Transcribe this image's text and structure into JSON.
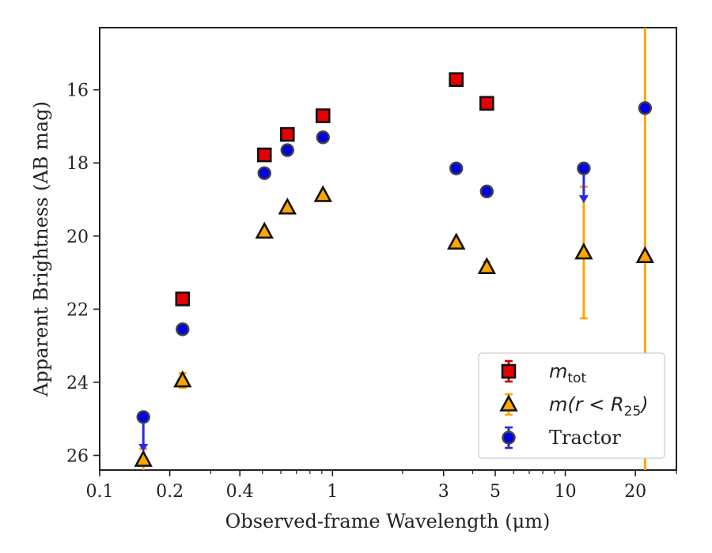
{
  "chart_data": {
    "type": "scatter",
    "xlabel": "Observed-frame Wavelength (μm)",
    "ylabel": "Apparent Brightness (AB mag)",
    "xscale": "log",
    "xlim": [
      0.1,
      30
    ],
    "ylim": [
      26.4,
      14.3
    ],
    "y_inverted": true,
    "xticks": [
      {
        "value": 0.1,
        "label": "0.1"
      },
      {
        "value": 0.2,
        "label": "0.2"
      },
      {
        "value": 0.4,
        "label": "0.4"
      },
      {
        "value": 1,
        "label": "1"
      },
      {
        "value": 3,
        "label": "3"
      },
      {
        "value": 5,
        "label": "5"
      },
      {
        "value": 10,
        "label": "10"
      },
      {
        "value": 20,
        "label": "20"
      }
    ],
    "yticks": [
      16,
      18,
      20,
      22,
      24,
      26
    ],
    "grid": false,
    "legend_position": "lower right",
    "series": [
      {
        "name": "m_tot",
        "legend_main": "m",
        "legend_sub": "tot",
        "marker": "square",
        "color": "#e60000",
        "errorbar_color": "#cc0000",
        "points": [
          {
            "x": 0.227,
            "y": 21.72,
            "err": 0.0
          },
          {
            "x": 0.51,
            "y": 17.78,
            "err": 0.0
          },
          {
            "x": 0.64,
            "y": 17.22,
            "err": 0.0
          },
          {
            "x": 0.91,
            "y": 16.71,
            "err": 0.0
          },
          {
            "x": 3.4,
            "y": 15.72,
            "err": 0.0
          },
          {
            "x": 4.6,
            "y": 16.37,
            "err": 0.0
          }
        ]
      },
      {
        "name": "m(r<R_25)",
        "legend_main": "m(r < R",
        "legend_sub": "25",
        "legend_close": ")",
        "marker": "triangle",
        "color": "#ffa500",
        "errorbar_color": "#ffa500",
        "points": [
          {
            "x": 0.154,
            "y": 26.12,
            "err": 0.3
          },
          {
            "x": 0.227,
            "y": 23.95,
            "err": 0.2
          },
          {
            "x": 0.51,
            "y": 19.88,
            "err": 0.0
          },
          {
            "x": 0.64,
            "y": 19.22,
            "err": 0.0
          },
          {
            "x": 0.91,
            "y": 18.88,
            "err": 0.0
          },
          {
            "x": 3.4,
            "y": 20.18,
            "err": 0.0
          },
          {
            "x": 4.6,
            "y": 20.85,
            "err": 0.15
          },
          {
            "x": 12.0,
            "y": 20.45,
            "err_low": 1.8,
            "err_high": 1.8
          },
          {
            "x": 22.0,
            "y": 20.55,
            "err_low": 12,
            "err_high": 12
          }
        ]
      },
      {
        "name": "Tractor",
        "legend_main": "Tractor",
        "marker": "circle",
        "color": "#0000e0",
        "errorbar_color": "#2a2ae0",
        "points": [
          {
            "x": 0.154,
            "y": 24.95,
            "upper_limit": true
          },
          {
            "x": 0.227,
            "y": 22.55,
            "err": 0.0
          },
          {
            "x": 0.51,
            "y": 18.28,
            "err": 0.0
          },
          {
            "x": 0.64,
            "y": 17.65,
            "err": 0.0
          },
          {
            "x": 0.91,
            "y": 17.3,
            "err": 0.0
          },
          {
            "x": 3.4,
            "y": 18.15,
            "err": 0.0
          },
          {
            "x": 4.6,
            "y": 18.78,
            "err": 0.0
          },
          {
            "x": 12.0,
            "y": 18.15,
            "upper_limit": true
          },
          {
            "x": 22.0,
            "y": 16.5,
            "err": 0.0
          }
        ]
      }
    ]
  }
}
